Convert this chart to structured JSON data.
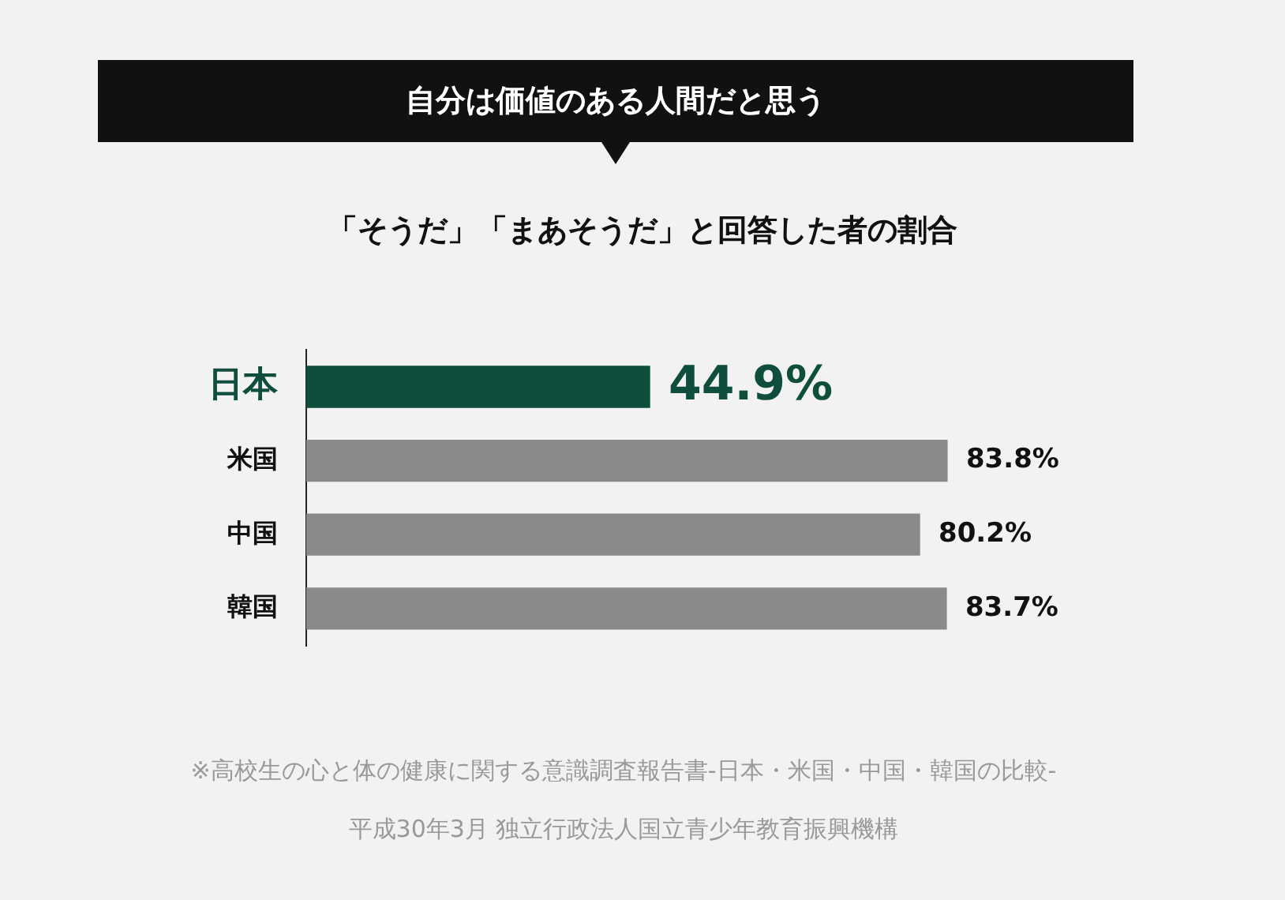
{
  "chart_data": {
    "type": "bar",
    "orientation": "horizontal",
    "title": "自分は価値のある人間だと思う",
    "subtitle": "「そうだ」「まあそうだ」と回答した者の割合",
    "categories": [
      "日本",
      "米国",
      "中国",
      "韓国"
    ],
    "values": [
      44.9,
      83.8,
      80.2,
      83.7
    ],
    "colors": [
      "#0f4d3c",
      "#8a8a8a",
      "#8a8a8a",
      "#8a8a8a"
    ],
    "value_labels": [
      "44.9%",
      "83.8%",
      "80.2%",
      "83.7%"
    ],
    "legend": false,
    "annotations": [
      "※高校生の心と体の健康に関する意識調査報告書-日本・米国・中国・韓国の比較-",
      "平成30年3月 独立行政法人国立青少年教育振興機構"
    ]
  }
}
